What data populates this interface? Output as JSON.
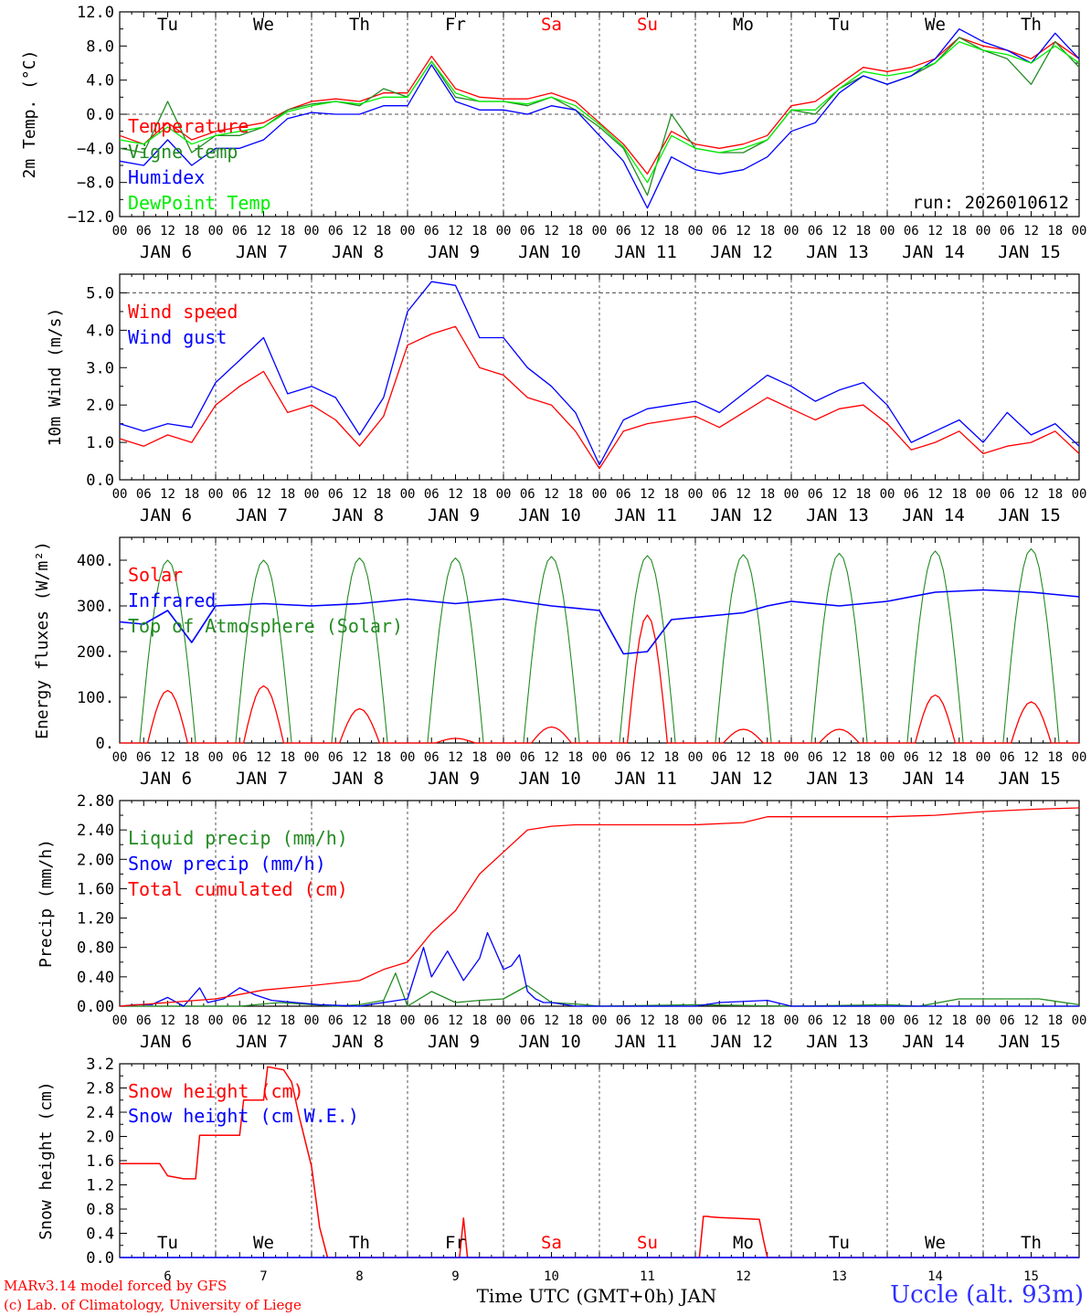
{
  "footer": {
    "credit_line1": "MARv3.14 model forced by GFS",
    "credit_line2": "(c) Lab. of Climatology, University of Liege",
    "station": "Uccle (alt. 93m)"
  },
  "colors": {
    "red": "#ff0000",
    "green": "#228b22",
    "blue": "#0000ff",
    "lime": "#00ee00",
    "grid": "#555555"
  },
  "chart_data": [
    {
      "type": "line",
      "id": "temp",
      "ylabel": "2m Temp. (°C)",
      "ylim": [
        -12,
        12
      ],
      "ytick_labels": [
        "−12.0",
        "−8.0",
        "−4.0",
        "0.0",
        "4.0",
        "8.0",
        "12.0"
      ],
      "ytick_values": [
        -12,
        -8,
        -4,
        0,
        4,
        8,
        12
      ],
      "dashed_ref": 0,
      "run_label": "run: 2026010612",
      "top_day_labels": [
        {
          "text": "Tu",
          "color": "#000000"
        },
        {
          "text": "We",
          "color": "#000000"
        },
        {
          "text": "Th",
          "color": "#000000"
        },
        {
          "text": "Fr",
          "color": "#000000"
        },
        {
          "text": "Sa",
          "color": "#ff0000"
        },
        {
          "text": "Su",
          "color": "#ff0000"
        },
        {
          "text": "Mo",
          "color": "#000000"
        },
        {
          "text": "Tu",
          "color": "#000000"
        },
        {
          "text": "We",
          "color": "#000000"
        },
        {
          "text": "Th",
          "color": "#000000"
        }
      ],
      "x_hours": [
        0,
        6,
        12,
        18,
        24,
        30,
        36,
        42,
        48,
        54,
        60,
        66,
        72,
        78,
        84,
        90,
        96,
        102,
        108,
        114,
        120,
        126,
        132,
        138,
        144,
        150,
        156,
        162,
        168,
        174,
        180,
        186,
        192,
        198,
        204,
        210,
        216,
        222,
        228,
        234,
        240
      ],
      "series": [
        {
          "name": "Temperature",
          "color": "#ff0000",
          "values": [
            -2.5,
            -3.5,
            -1.0,
            -3.0,
            -2.0,
            -1.5,
            -1.0,
            0.5,
            1.5,
            1.8,
            1.5,
            2.5,
            2.5,
            6.8,
            3.0,
            2.0,
            1.8,
            1.8,
            2.5,
            1.5,
            -1.0,
            -3.5,
            -7.0,
            -2.0,
            -3.5,
            -4.0,
            -3.5,
            -2.5,
            1.0,
            1.5,
            3.5,
            5.5,
            5.0,
            5.5,
            6.5,
            9.0,
            8.0,
            7.5,
            6.5,
            8.5,
            6.5
          ]
        },
        {
          "name": "Vigne temp",
          "color": "#228b22",
          "values": [
            -4.0,
            -4.5,
            1.5,
            -4.5,
            -2.5,
            -2.5,
            -1.5,
            0.5,
            1.2,
            1.5,
            1.0,
            3.0,
            2.0,
            6.2,
            2.0,
            1.5,
            1.5,
            1.0,
            2.0,
            0.5,
            -1.5,
            -4.0,
            -9.5,
            0.0,
            -4.0,
            -4.5,
            -4.5,
            -3.0,
            0.5,
            0.0,
            3.0,
            4.5,
            3.5,
            4.5,
            6.0,
            9.0,
            7.5,
            6.5,
            3.5,
            8.5,
            5.5
          ]
        },
        {
          "name": "Humidex",
          "color": "#0000ff",
          "values": [
            -5.5,
            -6.0,
            -3.0,
            -6.0,
            -4.0,
            -4.0,
            -3.0,
            -0.5,
            0.2,
            0.0,
            0.0,
            1.0,
            1.0,
            5.8,
            1.5,
            0.5,
            0.5,
            0.0,
            1.0,
            0.5,
            -2.5,
            -5.5,
            -11.0,
            -5.0,
            -6.5,
            -7.0,
            -6.5,
            -5.0,
            -2.0,
            -1.0,
            2.5,
            4.5,
            3.5,
            4.5,
            6.5,
            10.0,
            8.5,
            7.5,
            6.0,
            9.5,
            6.5
          ]
        },
        {
          "name": "DewPoint Temp",
          "color": "#00ee00",
          "values": [
            -3.0,
            -3.5,
            -1.5,
            -3.5,
            -2.5,
            -2.0,
            -1.5,
            0.3,
            1.0,
            1.5,
            1.2,
            2.0,
            2.0,
            6.2,
            2.5,
            1.5,
            1.5,
            1.2,
            2.0,
            1.0,
            -1.2,
            -3.8,
            -8.0,
            -2.5,
            -4.0,
            -4.5,
            -4.0,
            -3.0,
            0.5,
            0.5,
            3.0,
            5.0,
            4.5,
            5.0,
            6.0,
            8.5,
            7.5,
            7.0,
            6.0,
            8.0,
            6.0
          ]
        }
      ]
    },
    {
      "type": "line",
      "id": "wind",
      "ylabel": "10m Wind (m/s)",
      "ylim": [
        0,
        5.5
      ],
      "ytick_labels": [
        "0.0",
        "1.0",
        "2.0",
        "3.0",
        "4.0",
        "5.0"
      ],
      "ytick_values": [
        0,
        1,
        2,
        3,
        4,
        5
      ],
      "dashed_ref": 5,
      "x_hours": [
        0,
        6,
        12,
        18,
        24,
        30,
        36,
        42,
        48,
        54,
        60,
        66,
        72,
        78,
        84,
        90,
        96,
        102,
        108,
        114,
        120,
        126,
        132,
        138,
        144,
        150,
        156,
        162,
        168,
        174,
        180,
        186,
        192,
        198,
        204,
        210,
        216,
        222,
        228,
        234,
        240
      ],
      "series": [
        {
          "name": "Wind speed",
          "color": "#ff0000",
          "values": [
            1.1,
            0.9,
            1.2,
            1.0,
            2.0,
            2.5,
            2.9,
            1.8,
            2.0,
            1.6,
            0.9,
            1.7,
            3.6,
            3.9,
            4.1,
            3.0,
            2.8,
            2.2,
            2.0,
            1.3,
            0.3,
            1.3,
            1.5,
            1.6,
            1.7,
            1.4,
            1.8,
            2.2,
            1.9,
            1.6,
            1.9,
            2.0,
            1.5,
            0.8,
            1.0,
            1.3,
            0.7,
            0.9,
            1.0,
            1.3,
            0.7
          ]
        },
        {
          "name": "Wind gust",
          "color": "#0000ff",
          "values": [
            1.5,
            1.3,
            1.5,
            1.4,
            2.6,
            3.2,
            3.8,
            2.3,
            2.5,
            2.2,
            1.2,
            2.2,
            4.5,
            5.3,
            5.2,
            3.8,
            3.8,
            3.0,
            2.5,
            1.8,
            0.4,
            1.6,
            1.9,
            2.0,
            2.1,
            1.8,
            2.3,
            2.8,
            2.5,
            2.1,
            2.4,
            2.6,
            2.0,
            1.0,
            1.3,
            1.6,
            1.0,
            1.8,
            1.2,
            1.5,
            0.9
          ]
        }
      ]
    },
    {
      "type": "line",
      "id": "energy",
      "ylabel": "Energy fluxes (W/m²)",
      "ylim": [
        0,
        450
      ],
      "ytick_labels": [
        "0.",
        "100.",
        "200.",
        "300.",
        "400."
      ],
      "ytick_values": [
        0,
        100,
        200,
        300,
        400
      ],
      "series": [
        {
          "name": "Solar",
          "color": "#ff0000",
          "peaks": [
            115,
            125,
            75,
            10,
            35,
            280,
            30,
            30,
            105,
            90
          ]
        },
        {
          "name": "Infrared",
          "color": "#0000ff",
          "x_hours": [
            0,
            6,
            12,
            18,
            24,
            36,
            48,
            60,
            72,
            84,
            96,
            108,
            120,
            126,
            132,
            138,
            144,
            150,
            156,
            162,
            168,
            180,
            192,
            204,
            216,
            228,
            240
          ],
          "values": [
            265,
            260,
            290,
            220,
            300,
            305,
            300,
            305,
            315,
            305,
            315,
            300,
            290,
            195,
            200,
            270,
            275,
            280,
            285,
            300,
            310,
            300,
            310,
            330,
            335,
            330,
            320
          ]
        },
        {
          "name": "Top of Atmosphere (Solar)",
          "color": "#228b22",
          "peaks": [
            400,
            400,
            405,
            405,
            408,
            410,
            412,
            415,
            420,
            425
          ]
        }
      ]
    },
    {
      "type": "line",
      "id": "precip",
      "ylabel": "Precip (mm/h)",
      "ylim": [
        0,
        2.8
      ],
      "ytick_labels": [
        "0.00",
        "0.40",
        "0.80",
        "1.20",
        "1.60",
        "2.00",
        "2.40",
        "2.80"
      ],
      "ytick_values": [
        0,
        0.4,
        0.8,
        1.2,
        1.6,
        2.0,
        2.4,
        2.8
      ],
      "series": [
        {
          "name": "Liquid precip (mm/h)",
          "color": "#228b22",
          "x_hours": [
            0,
            30,
            40,
            54,
            60,
            66,
            69,
            72,
            78,
            84,
            90,
            96,
            102,
            108,
            114,
            120,
            144,
            168,
            192,
            200,
            210,
            230,
            240
          ],
          "values": [
            0,
            0,
            0.05,
            0,
            0.02,
            0.08,
            0.45,
            0,
            0.2,
            0.05,
            0.08,
            0.1,
            0.28,
            0.05,
            0.03,
            0,
            0.02,
            0,
            0.02,
            0,
            0.1,
            0.1,
            0.02
          ]
        },
        {
          "name": "Snow precip (mm/h)",
          "color": "#0000ff",
          "x_hours": [
            0,
            4,
            8,
            12,
            16,
            20,
            22,
            26,
            30,
            34,
            38,
            44,
            50,
            60,
            72,
            76,
            78,
            82,
            86,
            90,
            92,
            96,
            98,
            100,
            102,
            104,
            106,
            108,
            114,
            120,
            144,
            150,
            162,
            168,
            200,
            240
          ],
          "values": [
            0,
            0.02,
            0.02,
            0.12,
            0.0,
            0.25,
            0.05,
            0.1,
            0.25,
            0.15,
            0.08,
            0.05,
            0.02,
            0,
            0.1,
            0.8,
            0.4,
            0.75,
            0.35,
            0.65,
            1.0,
            0.5,
            0.55,
            0.7,
            0.2,
            0.1,
            0.05,
            0.05,
            0,
            0,
            0,
            0.05,
            0.08,
            0,
            0,
            0
          ]
        },
        {
          "name": "Total cumulated (cm)",
          "color": "#ff0000",
          "x_hours": [
            0,
            12,
            24,
            36,
            48,
            60,
            66,
            72,
            78,
            84,
            90,
            96,
            102,
            108,
            114,
            120,
            144,
            156,
            162,
            168,
            180,
            192,
            204,
            216,
            228,
            240
          ],
          "values": [
            0,
            0.05,
            0.1,
            0.22,
            0.28,
            0.35,
            0.5,
            0.6,
            1.0,
            1.3,
            1.8,
            2.1,
            2.4,
            2.45,
            2.47,
            2.47,
            2.47,
            2.5,
            2.58,
            2.58,
            2.58,
            2.58,
            2.6,
            2.65,
            2.68,
            2.7
          ]
        }
      ]
    },
    {
      "type": "line",
      "id": "snow",
      "ylabel": "Snow height (cm)",
      "ylim": [
        0,
        3.2
      ],
      "ytick_labels": [
        "0.0",
        "0.4",
        "0.8",
        "1.2",
        "1.6",
        "2.0",
        "2.4",
        "2.8",
        "3.2"
      ],
      "ytick_values": [
        0,
        0.4,
        0.8,
        1.2,
        1.6,
        2.0,
        2.4,
        2.8,
        3.2
      ],
      "bottom_day_labels": [
        {
          "text": "Tu",
          "color": "#000000"
        },
        {
          "text": "We",
          "color": "#000000"
        },
        {
          "text": "Th",
          "color": "#000000"
        },
        {
          "text": "Fr",
          "color": "#000000"
        },
        {
          "text": "Sa",
          "color": "#ff0000"
        },
        {
          "text": "Su",
          "color": "#ff0000"
        },
        {
          "text": "Mo",
          "color": "#000000"
        },
        {
          "text": "Tu",
          "color": "#000000"
        },
        {
          "text": "We",
          "color": "#000000"
        },
        {
          "text": "Th",
          "color": "#000000"
        }
      ],
      "bottom_day_numbers": [
        "6",
        "7",
        "8",
        "9",
        "10",
        "11",
        "12",
        "13",
        "14",
        "15"
      ],
      "xlabel": "Time UTC (GMT+0h) JAN",
      "series": [
        {
          "name": "Snow height (cm)",
          "color": "#ff0000",
          "x_hours": [
            0,
            10,
            12,
            16,
            19,
            20,
            30,
            31,
            36,
            37,
            41,
            43,
            45,
            48,
            50,
            52,
            84,
            85,
            86,
            87,
            88,
            144,
            145,
            146,
            147,
            148,
            150,
            160,
            161,
            162,
            240
          ],
          "values": [
            1.55,
            1.55,
            1.35,
            1.3,
            1.3,
            2.02,
            2.02,
            2.6,
            2.6,
            3.15,
            3.1,
            2.9,
            2.3,
            1.5,
            0.5,
            0,
            0,
            0,
            0.65,
            0,
            0,
            0,
            0,
            0.68,
            0.68,
            0.67,
            0.66,
            0.63,
            0.3,
            0,
            0
          ]
        },
        {
          "name": "Snow height (cm W.E.)",
          "color": "#0000ff",
          "x_hours": [
            0,
            240
          ],
          "values": [
            0,
            0
          ]
        }
      ]
    }
  ],
  "x_axis": {
    "hour_ticks": [
      "00",
      "06",
      "12",
      "18"
    ],
    "final_hour": "00",
    "date_labels": [
      "JAN  6",
      "JAN  7",
      "JAN  8",
      "JAN  9",
      "JAN 10",
      "JAN 11",
      "JAN 12",
      "JAN 13",
      "JAN 14",
      "JAN 15"
    ]
  }
}
